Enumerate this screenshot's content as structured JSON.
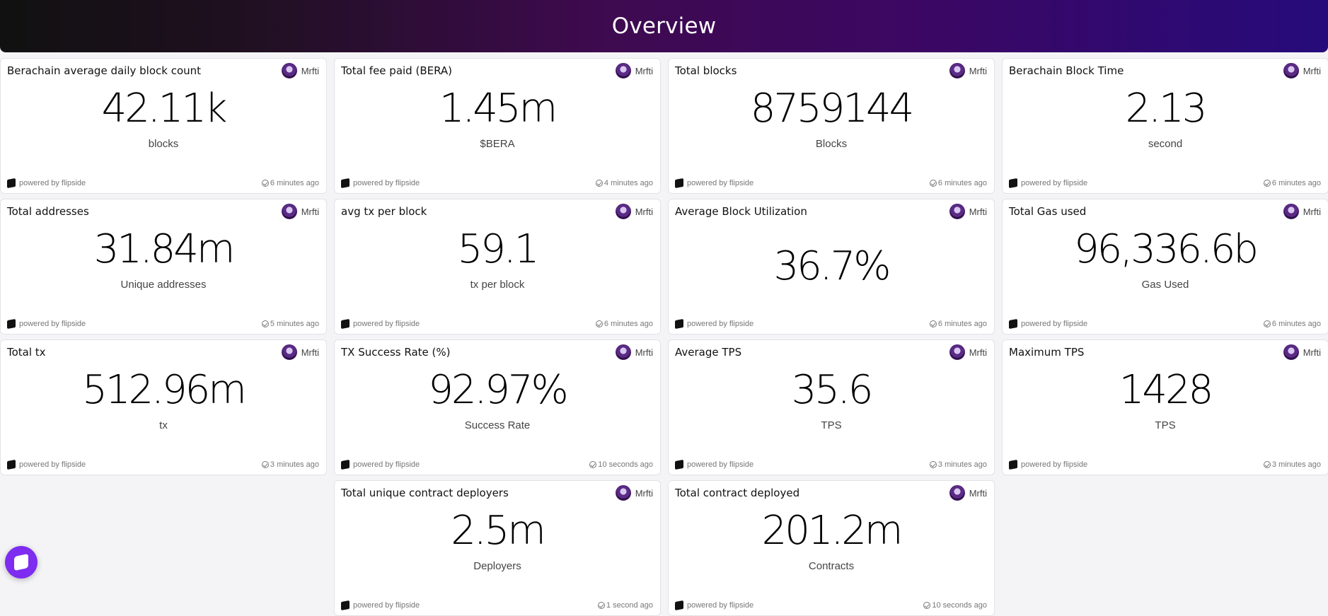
{
  "header": {
    "title": "Overview"
  },
  "author": "Mrfti",
  "powered_by": "powered by flipside",
  "cards": [
    {
      "title": "Berachain average daily block count",
      "value": "42.11k",
      "unit": "blocks",
      "updated": "6 minutes ago"
    },
    {
      "title": "Total fee paid (BERA)",
      "value": "1.45m",
      "unit": "$BERA",
      "updated": "4 minutes ago"
    },
    {
      "title": "Total blocks",
      "value": "8759144",
      "unit": "Blocks",
      "updated": "6 minutes ago"
    },
    {
      "title": "Berachain Block Time",
      "value": "2.13",
      "unit": "second",
      "updated": "6 minutes ago"
    },
    {
      "title": "Total addresses",
      "value": "31.84m",
      "unit": "Unique addresses",
      "updated": "5 minutes ago"
    },
    {
      "title": "avg tx per block",
      "value": "59.1",
      "unit": "tx per block",
      "updated": "6 minutes ago"
    },
    {
      "title": "Average Block Utilization",
      "value": "36.7%",
      "unit": "",
      "updated": "6 minutes ago"
    },
    {
      "title": "Total Gas used",
      "value": "96,336.6b",
      "unit": "Gas Used",
      "updated": "6 minutes ago"
    },
    {
      "title": "Total tx",
      "value": "512.96m",
      "unit": "tx",
      "updated": "3 minutes ago"
    },
    {
      "title": "TX Success Rate (%)",
      "value": "92.97%",
      "unit": "Success Rate",
      "updated": "10 seconds ago"
    },
    {
      "title": "Average TPS",
      "value": "35.6",
      "unit": "TPS",
      "updated": "3 minutes ago"
    },
    {
      "title": "Maximum TPS",
      "value": "1428",
      "unit": "TPS",
      "updated": "3 minutes ago"
    },
    {
      "title": "Total unique contract deployers",
      "value": "2.5m",
      "unit": "Deployers",
      "updated": "1 second ago"
    },
    {
      "title": "Total contract deployed",
      "value": "201.2m",
      "unit": "Contracts",
      "updated": "10 seconds ago"
    }
  ]
}
